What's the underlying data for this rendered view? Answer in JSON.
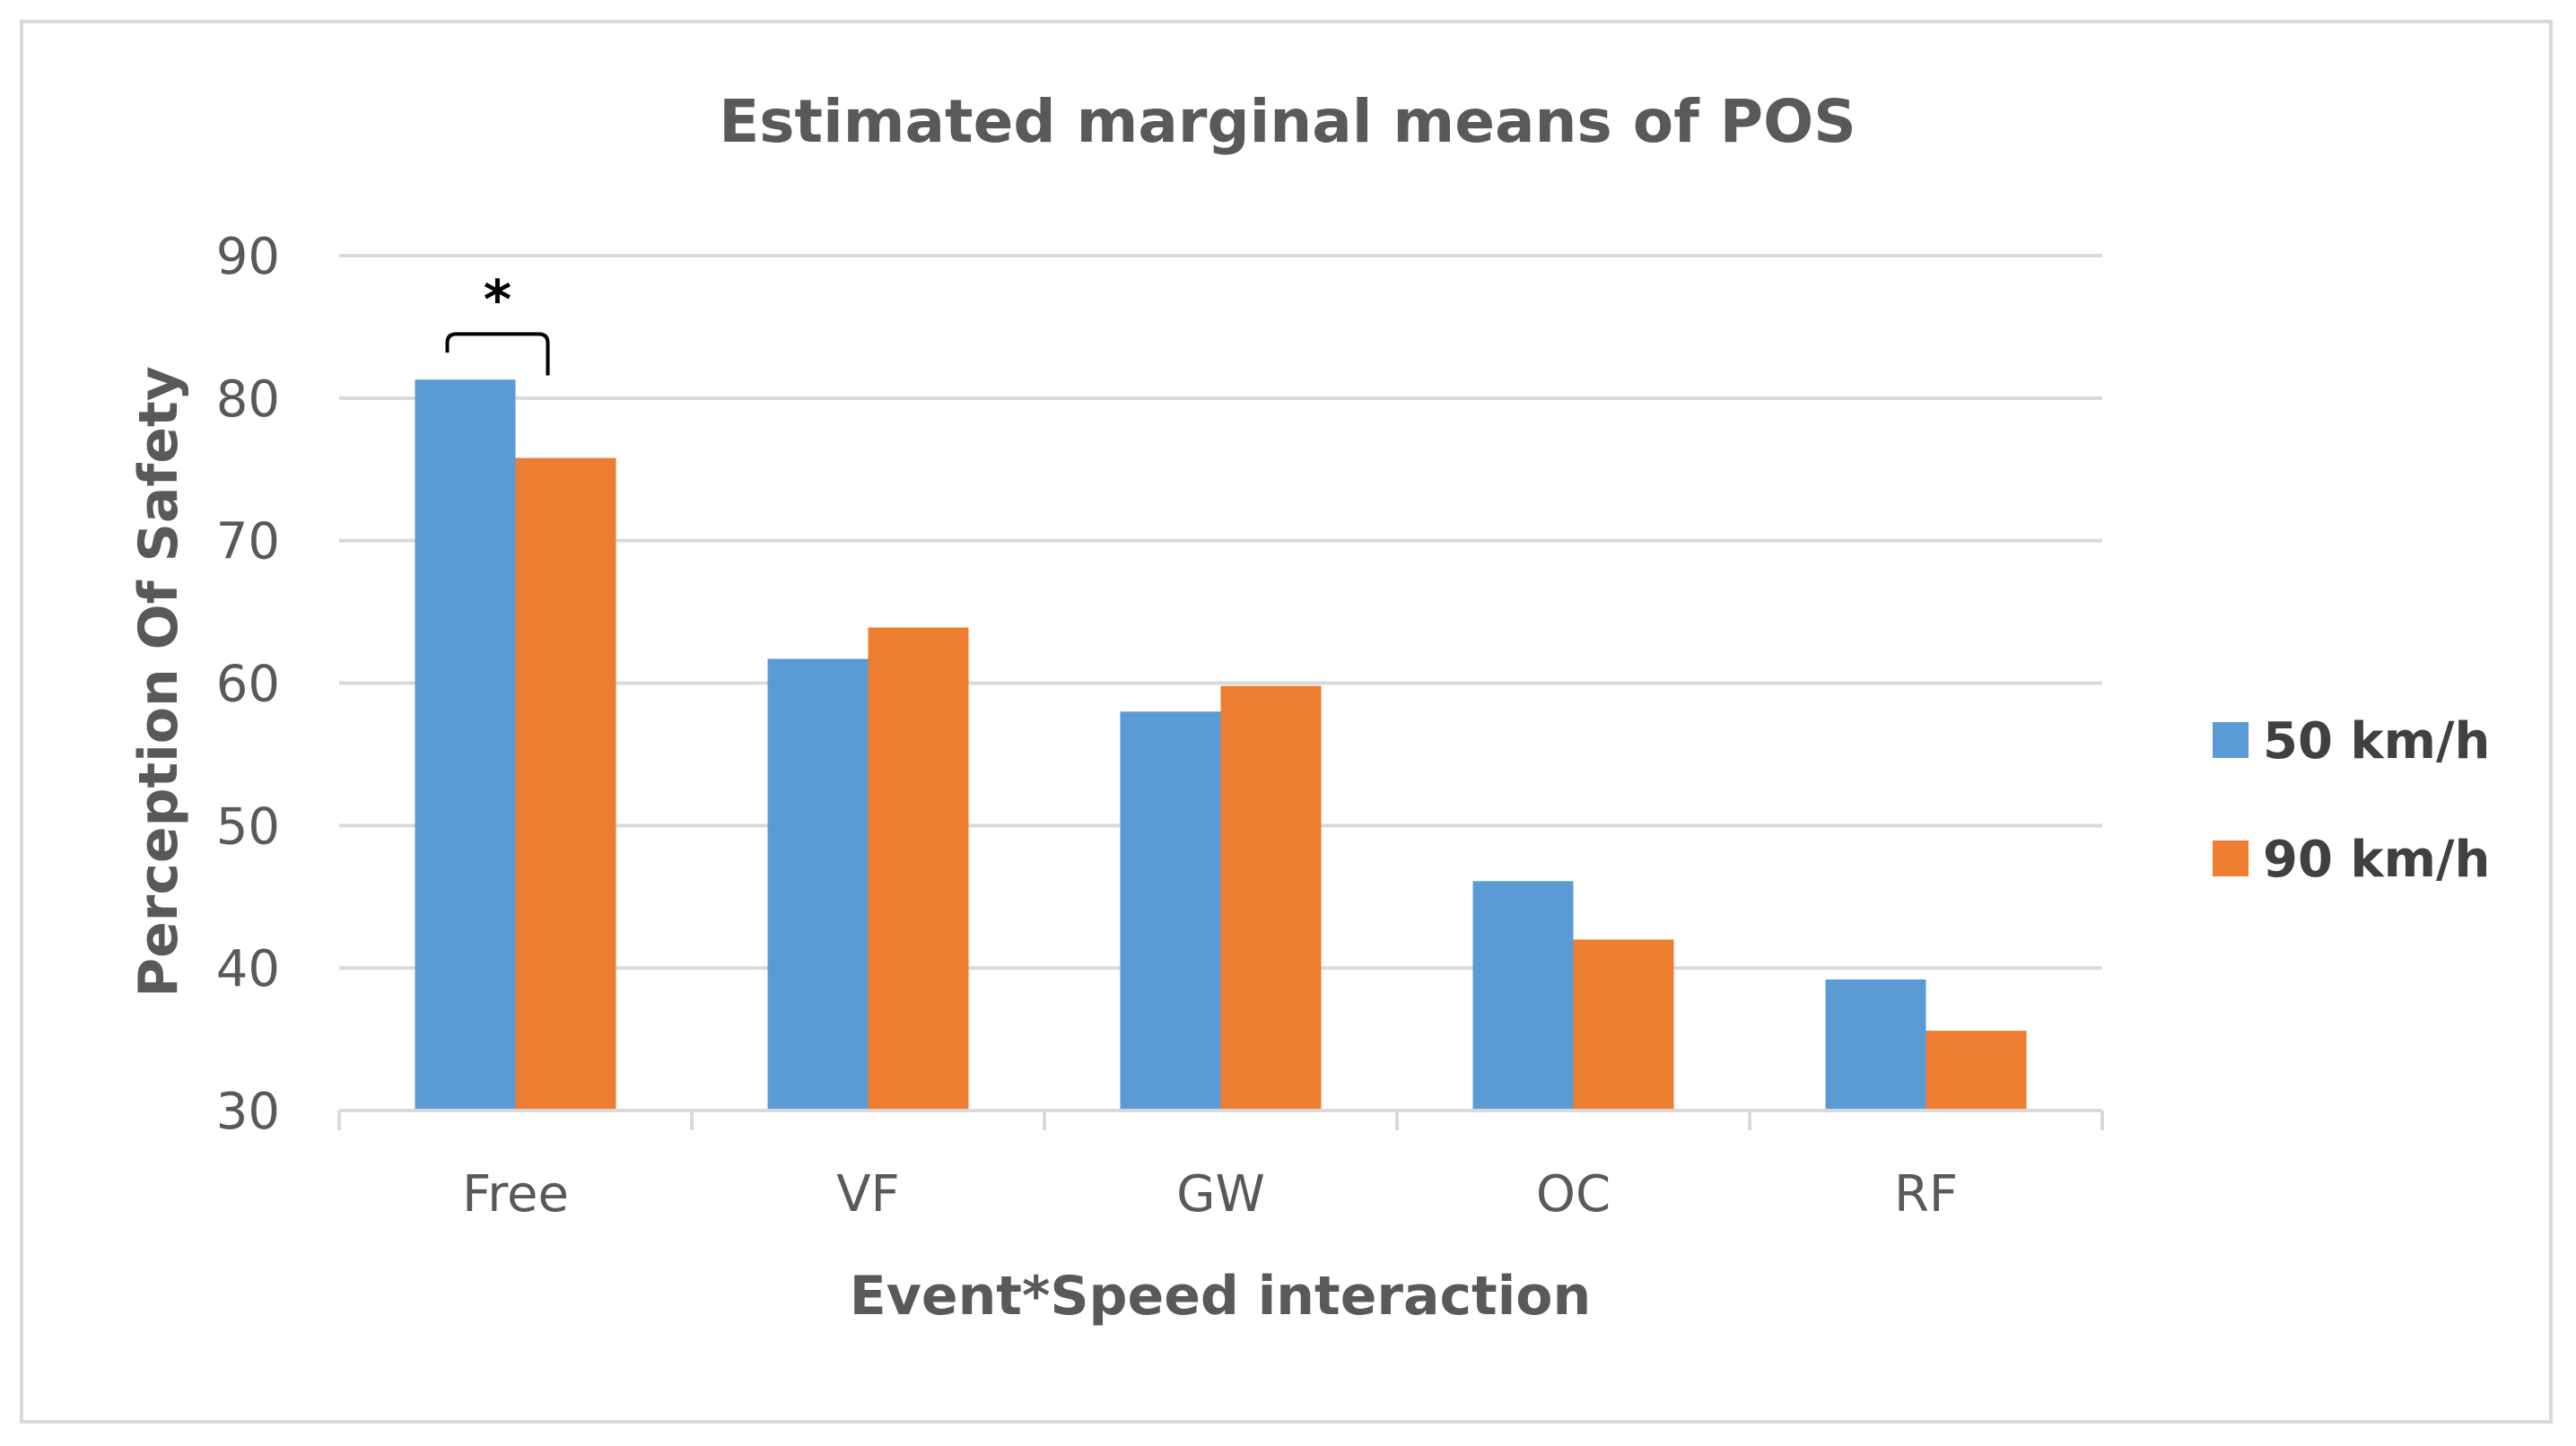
{
  "chart_data": {
    "type": "bar",
    "title": "Estimated marginal means of POS",
    "xlabel": "Event*Speed interaction",
    "ylabel": "Perception Of Safety",
    "categories": [
      "Free",
      "VF",
      "GW",
      "OC",
      "RF"
    ],
    "series": [
      {
        "name": "50 km/h",
        "color": "#5b9bd5",
        "values": [
          81.3,
          61.7,
          58.0,
          46.1,
          39.2
        ]
      },
      {
        "name": "90 km/h",
        "color": "#ed7d31",
        "values": [
          75.8,
          63.9,
          59.8,
          42.0,
          35.6
        ]
      }
    ],
    "ylim": [
      30,
      90
    ],
    "yticks": [
      30,
      40,
      50,
      60,
      70,
      80,
      90
    ],
    "grid": true,
    "legend_position": "right",
    "annotations": [
      {
        "text": "*",
        "type": "significance-bracket",
        "category": "Free",
        "between": [
          "50 km/h",
          "90 km/h"
        ]
      }
    ]
  }
}
